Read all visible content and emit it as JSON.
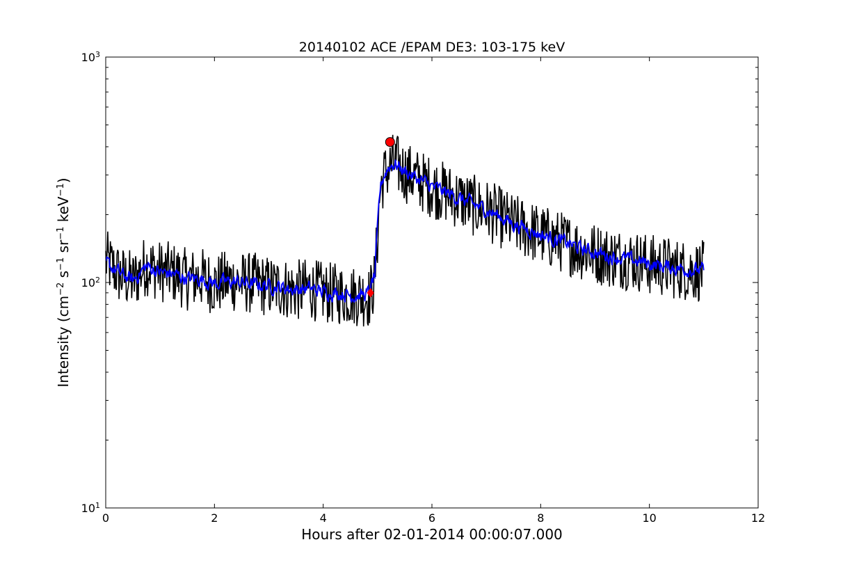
{
  "chart_data": {
    "type": "line",
    "title": "20140102 ACE /EPAM DE3: 103-175 keV",
    "xlabel": "Hours after 02-01-2014 00:00:07.000",
    "ylabel_parts": {
      "prefix": "Intensity (cm",
      "exp1": "−2",
      "s": " s",
      "exp2": "−1",
      "sr": " sr",
      "exp3": "−1",
      "kev": " keV",
      "exp4": "−1",
      "suffix": ")"
    },
    "xlim": [
      0,
      12
    ],
    "ylim": [
      10,
      1000
    ],
    "yscale": "log",
    "x_ticks": [
      "0",
      "2",
      "4",
      "6",
      "8",
      "10",
      "12"
    ],
    "y_ticks": [
      {
        "base": "10",
        "exp": "1"
      },
      {
        "base": "10",
        "exp": "2"
      },
      {
        "base": "10",
        "exp": "3"
      }
    ],
    "series": [
      {
        "color": "#000000",
        "style": "raw",
        "x": [
          0.0,
          0.25,
          0.5,
          0.75,
          1.0,
          1.25,
          1.5,
          1.75,
          2.0,
          2.25,
          2.5,
          2.75,
          3.0,
          3.25,
          3.5,
          3.75,
          4.0,
          4.25,
          4.5,
          4.75,
          4.85,
          4.95,
          5.0,
          5.05,
          5.1,
          5.2,
          5.3,
          5.5,
          5.75,
          6.0,
          6.25,
          6.5,
          6.75,
          7.0,
          7.25,
          7.5,
          7.75,
          8.0,
          8.25,
          8.5,
          8.75,
          9.0,
          9.25,
          9.5,
          9.75,
          10.0,
          10.25,
          10.5,
          10.75,
          11.0
        ],
        "y": [
          125,
          108,
          101,
          120,
          112,
          110,
          103,
          105,
          98,
          102,
          100,
          99,
          96,
          95,
          92,
          94,
          90,
          89,
          88,
          87,
          86,
          102,
          160,
          255,
          290,
          320,
          340,
          310,
          285,
          265,
          250,
          235,
          220,
          210,
          195,
          180,
          172,
          162,
          155,
          148,
          140,
          135,
          130,
          128,
          125,
          120,
          118,
          115,
          113,
          112
        ]
      },
      {
        "color": "#0000ff",
        "style": "smoothed",
        "x": [
          0.0,
          0.25,
          0.5,
          0.75,
          1.0,
          1.25,
          1.5,
          1.75,
          2.0,
          2.25,
          2.5,
          2.75,
          3.0,
          3.25,
          3.5,
          3.75,
          4.0,
          4.25,
          4.5,
          4.75,
          4.85,
          4.95,
          5.0,
          5.05,
          5.1,
          5.2,
          5.3,
          5.5,
          5.75,
          6.0,
          6.25,
          6.5,
          6.75,
          7.0,
          7.25,
          7.5,
          7.75,
          8.0,
          8.25,
          8.5,
          8.75,
          9.0,
          9.25,
          9.5,
          9.75,
          10.0,
          10.25,
          10.5,
          10.75,
          11.0
        ],
        "y": [
          122,
          110,
          102,
          118,
          111,
          109,
          104,
          104,
          99,
          101,
          100,
          98,
          97,
          95,
          93,
          94,
          91,
          90,
          88,
          88,
          90,
          108,
          170,
          262,
          292,
          325,
          338,
          312,
          287,
          266,
          251,
          236,
          222,
          210,
          196,
          182,
          173,
          163,
          156,
          149,
          141,
          136,
          131,
          128,
          125,
          121,
          118,
          116,
          114,
          113
        ]
      }
    ],
    "markers": [
      {
        "x": 4.87,
        "y": 90,
        "shape": "diamond",
        "color": "#ff0000"
      },
      {
        "x": 5.23,
        "y": 420,
        "shape": "circle",
        "color": "#ff0000"
      }
    ]
  }
}
